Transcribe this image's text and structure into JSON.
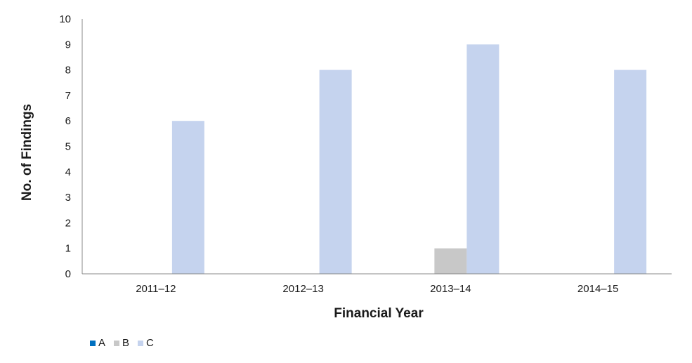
{
  "chart_data": {
    "type": "bar",
    "categories": [
      "2011–12",
      "2012–13",
      "2013–14",
      "2014–15"
    ],
    "series": [
      {
        "name": "A",
        "color": "#0070c0",
        "values": [
          0,
          0,
          0,
          0
        ]
      },
      {
        "name": "B",
        "color": "#c8c8c8",
        "values": [
          0,
          0,
          1,
          0
        ]
      },
      {
        "name": "C",
        "color": "#c5d3ee",
        "values": [
          6,
          8,
          9,
          8
        ]
      }
    ],
    "yticks": [
      "0",
      "1",
      "2",
      "3",
      "4",
      "5",
      "6",
      "7",
      "8",
      "9",
      "10"
    ],
    "xlabel": "Financial Year",
    "ylabel": "No. of Findings",
    "ylim": [
      0,
      10
    ],
    "grid": false,
    "legend_position": "bottom-left"
  }
}
